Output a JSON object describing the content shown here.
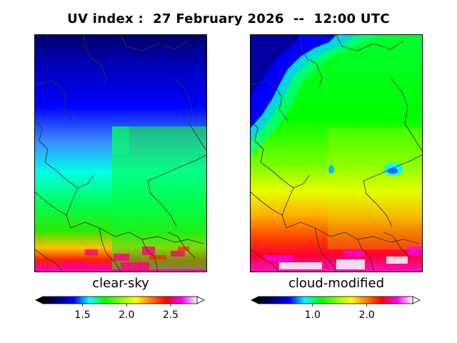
{
  "title": "UV index :  27 February 2026  --  12:00 UTC",
  "colors": {
    "scale": [
      "#000000",
      "#00007f",
      "#0000ff",
      "#00ffff",
      "#00ff00",
      "#7fff00",
      "#ffff00",
      "#ff7f00",
      "#ff0000",
      "#ff00ff",
      "#ffffff"
    ],
    "border": "#333333"
  },
  "chart_data": [
    {
      "type": "heatmap",
      "title": "clear-sky",
      "colorbar": {
        "range": [
          1.05,
          2.8
        ],
        "ticks": [
          1.5,
          2.0,
          2.5
        ],
        "tick_labels": [
          "1.5",
          "2.0",
          "2.5"
        ],
        "extend": "both",
        "orientation": "horizontal"
      },
      "gradient_description": "UV increases from north (about 1.1) to south (about 2.7)"
    },
    {
      "type": "heatmap",
      "title": "cloud-modified",
      "colorbar": {
        "range": [
          0.0,
          2.85
        ],
        "ticks": [
          1.0,
          2.0
        ],
        "tick_labels": [
          "1.0",
          "2.0"
        ],
        "extend": "both",
        "orientation": "horizontal"
      },
      "gradient_description": "UV increases from north (about 0.4) to south (about 2.8)"
    }
  ]
}
